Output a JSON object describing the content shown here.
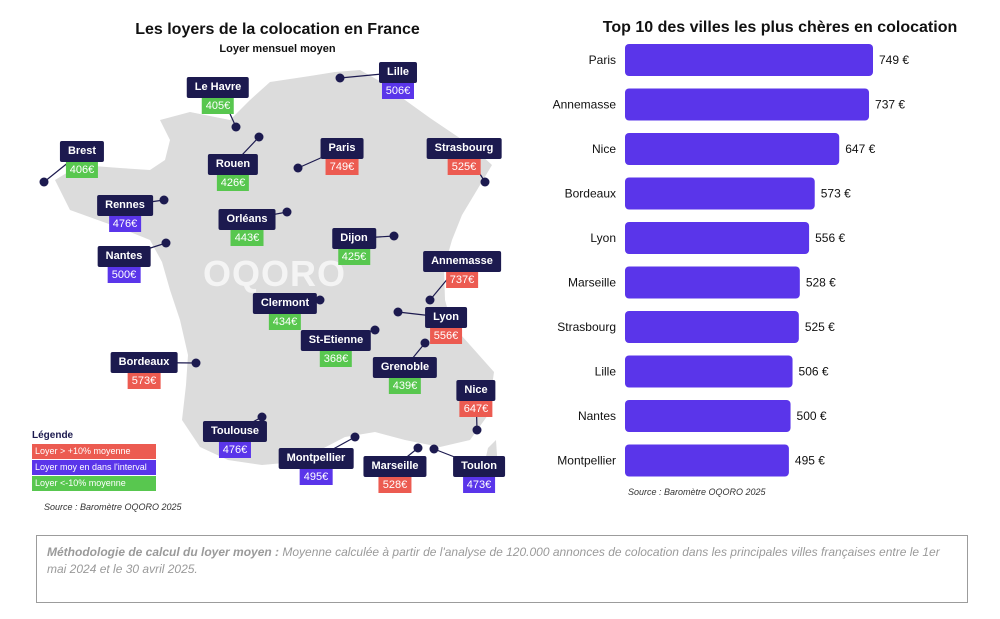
{
  "map": {
    "title": "Les loyers de la colocation en France",
    "subtitle": "Loyer mensuel moyen",
    "watermark": "OQORO",
    "source": "Source : Baromètre OQORO 2025",
    "land_color": "#dcdcdc",
    "label_color": "#1c1a4f",
    "cities": [
      {
        "name": "Lille",
        "price": "506€",
        "category": "mid"
      },
      {
        "name": "Le Havre",
        "price": "405€",
        "category": "low"
      },
      {
        "name": "Brest",
        "price": "406€",
        "category": "low"
      },
      {
        "name": "Rouen",
        "price": "426€",
        "category": "low"
      },
      {
        "name": "Paris",
        "price": "749€",
        "category": "high"
      },
      {
        "name": "Strasbourg",
        "price": "525€",
        "category": "high"
      },
      {
        "name": "Rennes",
        "price": "476€",
        "category": "mid"
      },
      {
        "name": "Orléans",
        "price": "443€",
        "category": "low"
      },
      {
        "name": "Nantes",
        "price": "500€",
        "category": "mid"
      },
      {
        "name": "Dijon",
        "price": "425€",
        "category": "low"
      },
      {
        "name": "Annemasse",
        "price": "737€",
        "category": "high"
      },
      {
        "name": "Clermont",
        "price": "434€",
        "category": "low"
      },
      {
        "name": "Lyon",
        "price": "556€",
        "category": "high"
      },
      {
        "name": "St-Etienne",
        "price": "368€",
        "category": "low"
      },
      {
        "name": "Grenoble",
        "price": "439€",
        "category": "low"
      },
      {
        "name": "Bordeaux",
        "price": "573€",
        "category": "high"
      },
      {
        "name": "Nice",
        "price": "647€",
        "category": "high"
      },
      {
        "name": "Toulouse",
        "price": "476€",
        "category": "mid"
      },
      {
        "name": "Montpellier",
        "price": "495€",
        "category": "mid"
      },
      {
        "name": "Marseille",
        "price": "528€",
        "category": "high"
      },
      {
        "name": "Toulon",
        "price": "473€",
        "category": "mid"
      }
    ]
  },
  "legend": {
    "title": "Légende",
    "items": [
      {
        "category": "high",
        "label": "Loyer > +10% moyenne",
        "color": "#ec5b51"
      },
      {
        "category": "mid",
        "label": "Loyer moy en dans l'interval",
        "color": "#5a35ea"
      },
      {
        "category": "low",
        "label": "Loyer <-10% moyenne",
        "color": "#58c74f"
      }
    ]
  },
  "chart_data": {
    "type": "bar",
    "orientation": "horizontal",
    "title": "Top 10 des villes les plus chères en colocation",
    "categories": [
      "Paris",
      "Annemasse",
      "Nice",
      "Bordeaux",
      "Lyon",
      "Marseille",
      "Strasbourg",
      "Lille",
      "Nantes",
      "Montpellier"
    ],
    "values": [
      749,
      737,
      647,
      573,
      556,
      528,
      525,
      506,
      500,
      495
    ],
    "value_labels": [
      "749 €",
      "737 €",
      "647 €",
      "573 €",
      "556 €",
      "528 €",
      "525 €",
      "506 €",
      "500 €",
      "495 €"
    ],
    "xlim": [
      0,
      749
    ],
    "grid": false,
    "bar_color": "#5a35ea",
    "source": "Source : Baromètre OQORO 2025"
  },
  "methodology": {
    "lead": "Méthodologie de calcul du loyer moyen :",
    "text": " Moyenne calculée à partir de l'analyse de 120.000 annonces de colocation dans les principales villes françaises entre le 1er mai 2024 et le 30 avril 2025."
  }
}
